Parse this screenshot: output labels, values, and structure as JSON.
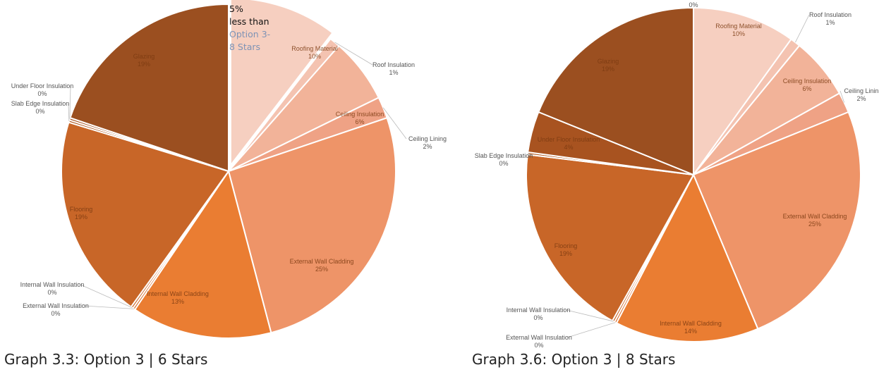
{
  "chart_data": [
    {
      "type": "pie",
      "caption": "Graph 3.3: Option 3 | 6 Stars",
      "annotation": [
        "5%",
        "less than",
        "Option 3-",
        "8 Stars"
      ],
      "slices": [
        {
          "name": "Roofing Material",
          "value": 10,
          "label": "10%",
          "color": "#f6cfc0"
        },
        {
          "name": "Roof Insulation",
          "value": 1,
          "label": "1%",
          "color": "#f4c3b1"
        },
        {
          "name": "Ceiling Insulation",
          "value": 6,
          "label": "6%",
          "color": "#f2b399"
        },
        {
          "name": "Ceiling Lining",
          "value": 2,
          "label": "2%",
          "color": "#efa285"
        },
        {
          "name": "External Wall Cladding",
          "value": 25,
          "label": "25%",
          "color": "#ee9468"
        },
        {
          "name": "Internal Wall Cladding",
          "value": 13,
          "label": "13%",
          "color": "#ea7d32"
        },
        {
          "name": "External Wall Insulation",
          "value": 0,
          "label": "0%",
          "color": "#d96d2b"
        },
        {
          "name": "Internal Wall Insulation",
          "value": 0,
          "label": "0%",
          "color": "#cc6628"
        },
        {
          "name": "Flooring",
          "value": 19,
          "label": "19%",
          "color": "#c86628"
        },
        {
          "name": "Slab Edge Insulation",
          "value": 0,
          "label": "0%",
          "color": "#b35c24"
        },
        {
          "name": "Under Floor Insulation",
          "value": 0,
          "label": "0%",
          "color": "#a85320"
        },
        {
          "name": "Glazing",
          "value": 19,
          "label": "19%",
          "color": "#9b4f20"
        }
      ]
    },
    {
      "type": "pie",
      "caption": "Graph 3.6: Option 3 | 8 Stars",
      "top_label": "0%",
      "slices": [
        {
          "name": "Roofing Material",
          "value": 10,
          "label": "10%",
          "color": "#f6cfc0"
        },
        {
          "name": "Roof Insulation",
          "value": 1,
          "label": "1%",
          "color": "#f4c3b1"
        },
        {
          "name": "Ceiling Insulation",
          "value": 6,
          "label": "6%",
          "color": "#f2b399"
        },
        {
          "name": "Ceiling Linin",
          "value": 2,
          "label": "2%",
          "color": "#efa285"
        },
        {
          "name": "External Wall Cladding",
          "value": 25,
          "label": "25%",
          "color": "#ee9468"
        },
        {
          "name": "Internal Wall Cladding",
          "value": 14,
          "label": "14%",
          "color": "#ea7d32"
        },
        {
          "name": "External Wall Insulation",
          "value": 0,
          "label": "0%",
          "color": "#d96d2b"
        },
        {
          "name": "Internal Wall Insulation",
          "value": 0,
          "label": "0%",
          "color": "#cc6628"
        },
        {
          "name": "Flooring",
          "value": 19,
          "label": "19%",
          "color": "#c86628"
        },
        {
          "name": "Slab Edge Insulation",
          "value": 0,
          "label": "0%",
          "color": "#b35c24"
        },
        {
          "name": "Under Floor Insulation",
          "value": 4,
          "label": "4%",
          "color": "#a85320"
        },
        {
          "name": "Glazing",
          "value": 19,
          "label": "19%",
          "color": "#9b4f20"
        }
      ]
    }
  ]
}
